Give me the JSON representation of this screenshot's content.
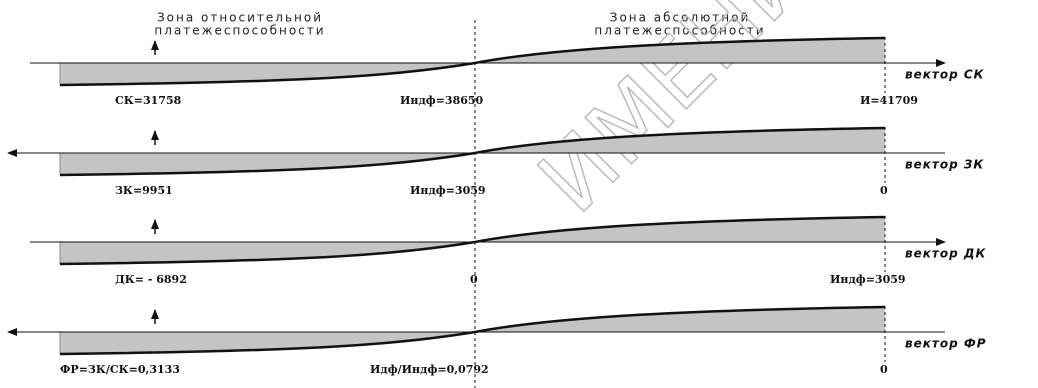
{
  "zones": {
    "relative": [
      "Зона относительной",
      "платежеспособности"
    ],
    "absolute": [
      "Зона абсолютной",
      "платежеспособности"
    ]
  },
  "rows": [
    {
      "vector": "вектор СК",
      "labels": [
        "СК=31758",
        "Индф=38650",
        "И=41709"
      ]
    },
    {
      "vector": "вектор ЗК",
      "labels": [
        "ЗК=9951",
        "Индф=3059",
        "0"
      ]
    },
    {
      "vector": "вектор ДК",
      "labels": [
        "ДК= - 6892",
        "0",
        "Индф=3059"
      ]
    },
    {
      "vector": "вектор ФР",
      "labels": [
        "ФР=ЗК/СК=0,3133",
        "Идф/Индф=0,0792",
        "0"
      ]
    }
  ],
  "watermark": "ИМЕНИ Ф. С"
}
